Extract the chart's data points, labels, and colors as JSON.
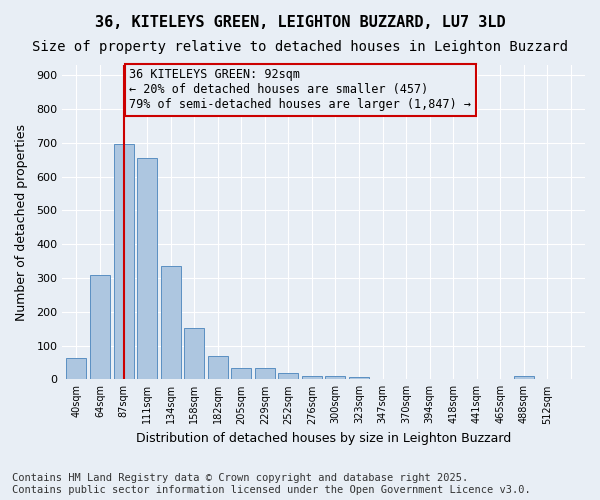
{
  "title": "36, KITELEYS GREEN, LEIGHTON BUZZARD, LU7 3LD",
  "subtitle": "Size of property relative to detached houses in Leighton Buzzard",
  "xlabel": "Distribution of detached houses by size in Leighton Buzzard",
  "ylabel": "Number of detached properties",
  "bar_values": [
    62,
    310,
    695,
    655,
    335,
    152,
    68,
    33,
    33,
    18,
    10,
    10,
    8,
    0,
    0,
    0,
    0,
    0,
    0,
    10,
    0,
    0
  ],
  "categories": [
    "40sqm",
    "64sqm",
    "87sqm",
    "111sqm",
    "134sqm",
    "158sqm",
    "182sqm",
    "205sqm",
    "229sqm",
    "252sqm",
    "276sqm",
    "300sqm",
    "323sqm",
    "347sqm",
    "370sqm",
    "394sqm",
    "418sqm",
    "441sqm",
    "465sqm",
    "488sqm",
    "512sqm",
    ""
  ],
  "bar_color": "#adc6e0",
  "bar_edge_color": "#5a8fc2",
  "vline_x": 2,
  "vline_color": "#cc0000",
  "annotation_text": "36 KITELEYS GREEN: 92sqm\n← 20% of detached houses are smaller (457)\n79% of semi-detached houses are larger (1,847) →",
  "annotation_box_color": "#cc0000",
  "ylim": [
    0,
    930
  ],
  "yticks": [
    0,
    100,
    200,
    300,
    400,
    500,
    600,
    700,
    800,
    900
  ],
  "bg_color": "#e8eef5",
  "grid_color": "#ffffff",
  "footnote": "Contains HM Land Registry data © Crown copyright and database right 2025.\nContains public sector information licensed under the Open Government Licence v3.0.",
  "title_fontsize": 11,
  "subtitle_fontsize": 10,
  "annotation_fontsize": 8.5,
  "footnote_fontsize": 7.5
}
